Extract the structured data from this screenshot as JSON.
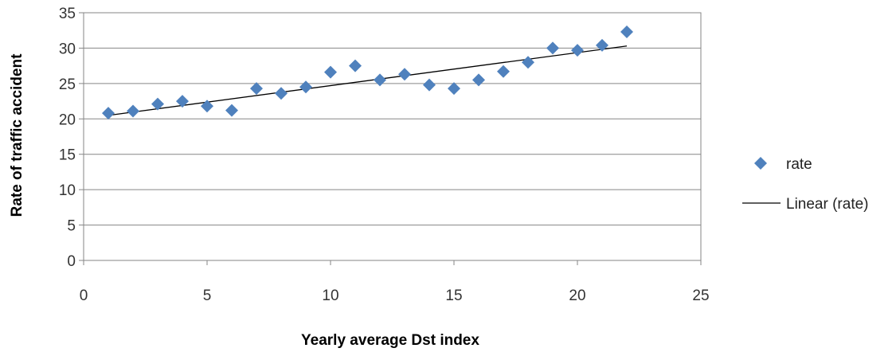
{
  "chart_data": {
    "type": "scatter",
    "xlabel": "Yearly average Dst index",
    "ylabel": "Rate of traffic accident",
    "xlim": [
      0,
      25
    ],
    "ylim": [
      0,
      35
    ],
    "x_ticks": [
      "0",
      "5",
      "10",
      "15",
      "20",
      "25"
    ],
    "y_ticks": [
      "0",
      "5",
      "10",
      "15",
      "20",
      "25",
      "30",
      "35"
    ],
    "grid": "horizontal",
    "legend_position": "right",
    "series": [
      {
        "name": "rate",
        "marker": "diamond",
        "color": "#4F81BD",
        "x": [
          1,
          2,
          3,
          4,
          5,
          6,
          7,
          8,
          9,
          10,
          11,
          12,
          13,
          14,
          15,
          16,
          17,
          18,
          19,
          20,
          21,
          22
        ],
        "y": [
          20.8,
          21.1,
          22.1,
          22.5,
          21.8,
          21.2,
          24.3,
          23.6,
          24.5,
          26.6,
          27.5,
          25.5,
          26.3,
          24.8,
          24.3,
          25.5,
          26.7,
          28.0,
          30.0,
          29.7,
          30.4,
          32.3
        ]
      }
    ],
    "trendline": {
      "name": "Linear (rate)",
      "type": "linear",
      "color": "#000000",
      "x": [
        1,
        22
      ],
      "y": [
        20.5,
        30.3
      ]
    }
  }
}
